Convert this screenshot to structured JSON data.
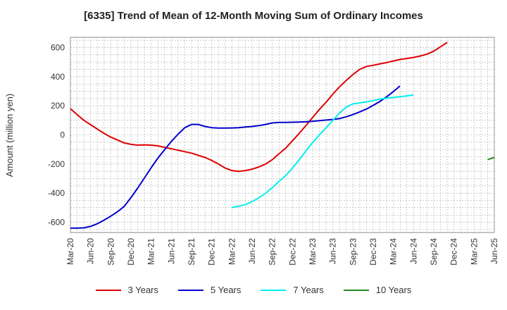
{
  "chart_data": {
    "type": "line",
    "title": "[6335]  Trend of Mean of 12-Month Moving Sum of Ordinary Incomes",
    "xlabel": "",
    "ylabel": "Amount (million yen)",
    "ylim": [
      -670,
      670
    ],
    "yticks": [
      -600,
      -400,
      -200,
      0,
      200,
      400,
      600
    ],
    "ytick_labels": [
      "-600",
      "-400",
      "-200",
      "0",
      "200",
      "400",
      "600"
    ],
    "x_categories": [
      "Mar-20",
      "Jun-20",
      "Sep-20",
      "Dec-20",
      "Mar-21",
      "Jun-21",
      "Sep-21",
      "Dec-21",
      "Mar-22",
      "Jun-22",
      "Sep-22",
      "Dec-22",
      "Mar-23",
      "Jun-23",
      "Sep-23",
      "Dec-23",
      "Mar-24",
      "Jun-24",
      "Sep-24",
      "Dec-24",
      "Mar-25",
      "Jun-25"
    ],
    "grid": true,
    "legend_position": "bottom",
    "series": [
      {
        "name": "3 Years",
        "color": "#dd0000",
        "points": [
          [
            0,
            180
          ],
          [
            0.33,
            140
          ],
          [
            0.67,
            100
          ],
          [
            1,
            70
          ],
          [
            1.33,
            40
          ],
          [
            1.67,
            10
          ],
          [
            2,
            -15
          ],
          [
            2.33,
            -35
          ],
          [
            2.67,
            -55
          ],
          [
            3,
            -65
          ],
          [
            3.33,
            -70
          ],
          [
            3.67,
            -68
          ],
          [
            4,
            -70
          ],
          [
            4.33,
            -75
          ],
          [
            4.67,
            -85
          ],
          [
            5,
            -95
          ],
          [
            5.33,
            -105
          ],
          [
            5.67,
            -115
          ],
          [
            6,
            -125
          ],
          [
            6.33,
            -140
          ],
          [
            6.67,
            -155
          ],
          [
            7,
            -175
          ],
          [
            7.33,
            -200
          ],
          [
            7.67,
            -228
          ],
          [
            8,
            -245
          ],
          [
            8.33,
            -250
          ],
          [
            8.67,
            -245
          ],
          [
            9,
            -235
          ],
          [
            9.33,
            -220
          ],
          [
            9.67,
            -200
          ],
          [
            10,
            -170
          ],
          [
            10.33,
            -130
          ],
          [
            10.67,
            -90
          ],
          [
            11,
            -40
          ],
          [
            11.33,
            10
          ],
          [
            11.67,
            65
          ],
          [
            12,
            120
          ],
          [
            12.33,
            175
          ],
          [
            12.67,
            225
          ],
          [
            13,
            280
          ],
          [
            13.33,
            330
          ],
          [
            13.67,
            375
          ],
          [
            14,
            415
          ],
          [
            14.33,
            450
          ],
          [
            14.67,
            470
          ],
          [
            15,
            478
          ],
          [
            15.33,
            488
          ],
          [
            15.67,
            497
          ],
          [
            16,
            508
          ],
          [
            16.33,
            518
          ],
          [
            16.67,
            525
          ],
          [
            17,
            532
          ],
          [
            17.33,
            542
          ],
          [
            17.67,
            555
          ],
          [
            18,
            575
          ],
          [
            18.33,
            605
          ],
          [
            18.67,
            635
          ]
        ]
      },
      {
        "name": "5 Years",
        "color": "#0000cc",
        "points": [
          [
            0,
            -640
          ],
          [
            0.33,
            -640
          ],
          [
            0.67,
            -638
          ],
          [
            1,
            -628
          ],
          [
            1.33,
            -610
          ],
          [
            1.67,
            -585
          ],
          [
            2,
            -558
          ],
          [
            2.33,
            -528
          ],
          [
            2.67,
            -490
          ],
          [
            3,
            -430
          ],
          [
            3.33,
            -365
          ],
          [
            3.67,
            -295
          ],
          [
            4,
            -225
          ],
          [
            4.33,
            -160
          ],
          [
            4.67,
            -100
          ],
          [
            5,
            -45
          ],
          [
            5.33,
            5
          ],
          [
            5.67,
            50
          ],
          [
            6,
            72
          ],
          [
            6.33,
            72
          ],
          [
            6.67,
            58
          ],
          [
            7,
            50
          ],
          [
            7.33,
            47
          ],
          [
            7.67,
            47
          ],
          [
            8,
            48
          ],
          [
            8.33,
            50
          ],
          [
            8.67,
            54
          ],
          [
            9,
            58
          ],
          [
            9.33,
            64
          ],
          [
            9.67,
            72
          ],
          [
            10,
            82
          ],
          [
            10.33,
            86
          ],
          [
            10.67,
            86
          ],
          [
            11,
            87
          ],
          [
            11.33,
            88
          ],
          [
            11.67,
            90
          ],
          [
            12,
            94
          ],
          [
            12.33,
            98
          ],
          [
            12.67,
            102
          ],
          [
            13,
            106
          ],
          [
            13.33,
            112
          ],
          [
            13.67,
            125
          ],
          [
            14,
            140
          ],
          [
            14.33,
            158
          ],
          [
            14.67,
            178
          ],
          [
            15,
            203
          ],
          [
            15.33,
            230
          ],
          [
            15.67,
            262
          ],
          [
            16,
            298
          ],
          [
            16.33,
            336
          ]
        ]
      },
      {
        "name": "7 Years",
        "color": "#00eeee",
        "points": [
          [
            8,
            -498
          ],
          [
            8.33,
            -490
          ],
          [
            8.67,
            -478
          ],
          [
            9,
            -458
          ],
          [
            9.33,
            -432
          ],
          [
            9.67,
            -400
          ],
          [
            10,
            -362
          ],
          [
            10.33,
            -320
          ],
          [
            10.67,
            -278
          ],
          [
            11,
            -228
          ],
          [
            11.33,
            -170
          ],
          [
            11.67,
            -110
          ],
          [
            12,
            -52
          ],
          [
            12.33,
            0
          ],
          [
            12.67,
            50
          ],
          [
            13,
            100
          ],
          [
            13.33,
            150
          ],
          [
            13.67,
            192
          ],
          [
            14,
            213
          ],
          [
            14.33,
            220
          ],
          [
            14.67,
            227
          ],
          [
            15,
            236
          ],
          [
            15.33,
            246
          ],
          [
            15.67,
            252
          ],
          [
            16,
            258
          ],
          [
            16.33,
            262
          ],
          [
            16.67,
            268
          ],
          [
            17,
            275
          ]
        ]
      },
      {
        "name": "10 Years",
        "color": "#228822",
        "points": [
          [
            20.67,
            -170
          ],
          [
            21,
            -155
          ]
        ]
      }
    ]
  }
}
